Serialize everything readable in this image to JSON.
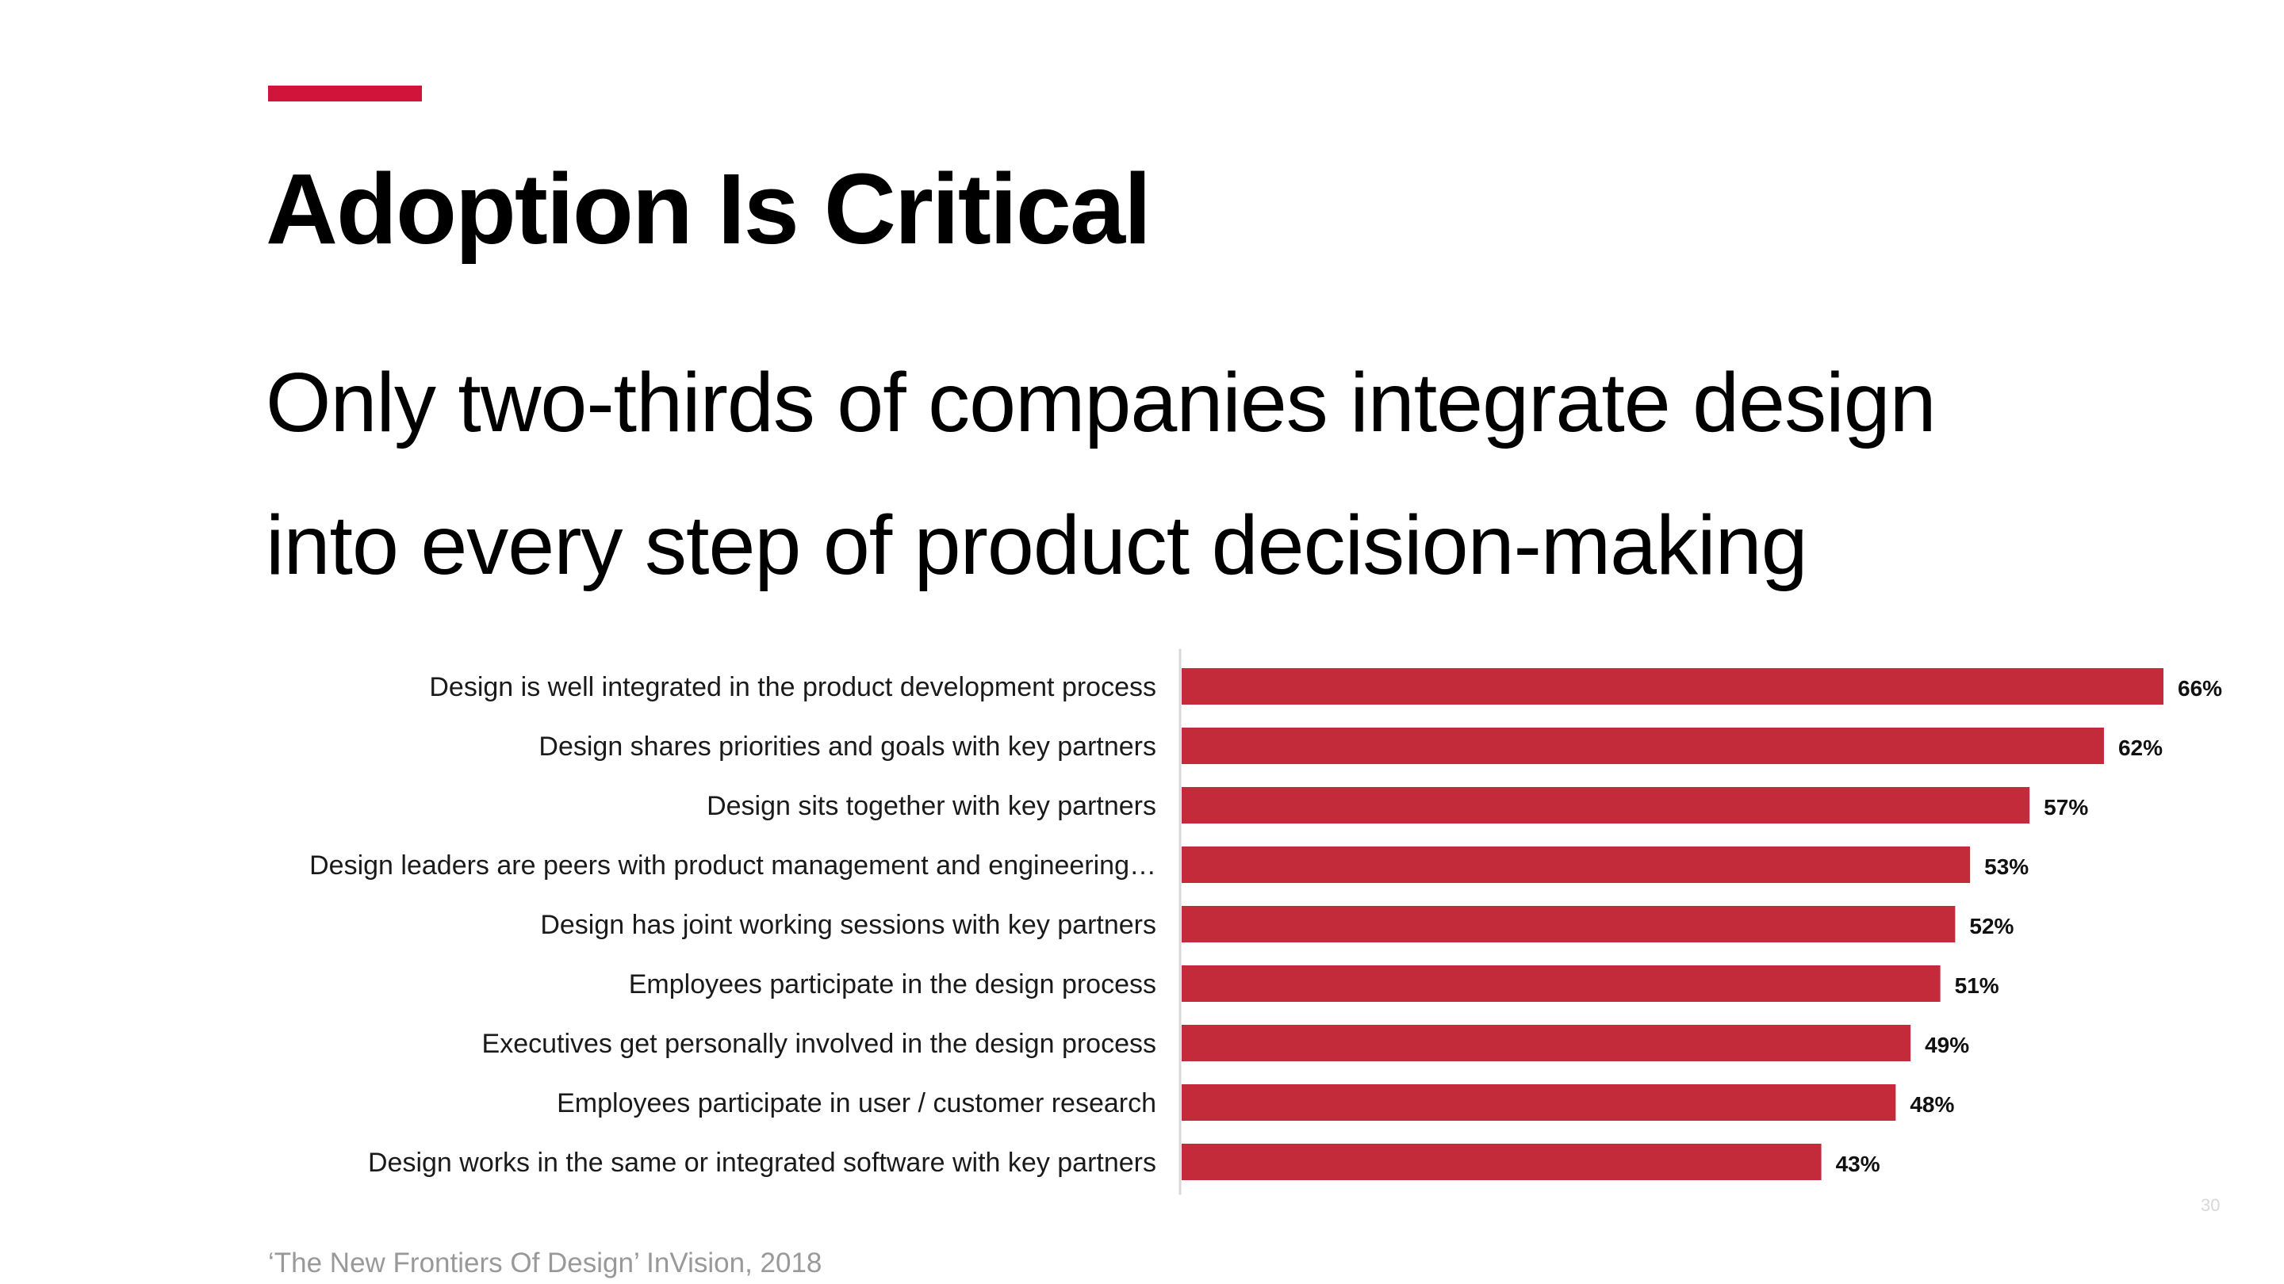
{
  "title": "Adoption Is Critical",
  "subtitle_lines": [
    "Only two-thirds of companies integrate design",
    "into every step of product decision-making"
  ],
  "source": "‘The New Frontiers Of Design’ InVision, 2018",
  "page_number": "30",
  "colors": {
    "accent": "#d0143a",
    "bar": "#c42b3a",
    "axis": "#d9d9d9"
  },
  "chart_data": {
    "type": "bar",
    "orientation": "horizontal",
    "categories": [
      "Design is well integrated in the product development process",
      "Design shares priorities and goals with key partners",
      "Design sits together with key partners",
      "Design leaders are peers with product management and engineering…",
      "Design has joint working sessions with key partners",
      "Employees participate in the design process",
      "Executives get personally involved in the design process",
      "Employees participate in user / customer research",
      "Design works in the same or integrated software with key partners"
    ],
    "values": [
      66,
      62,
      57,
      53,
      52,
      51,
      49,
      48,
      43
    ],
    "value_labels": [
      "66%",
      "62%",
      "57%",
      "53%",
      "52%",
      "51%",
      "49%",
      "48%",
      "43%"
    ],
    "unit": "%",
    "xlim": [
      0,
      66
    ],
    "grid": false,
    "legend": "none"
  }
}
